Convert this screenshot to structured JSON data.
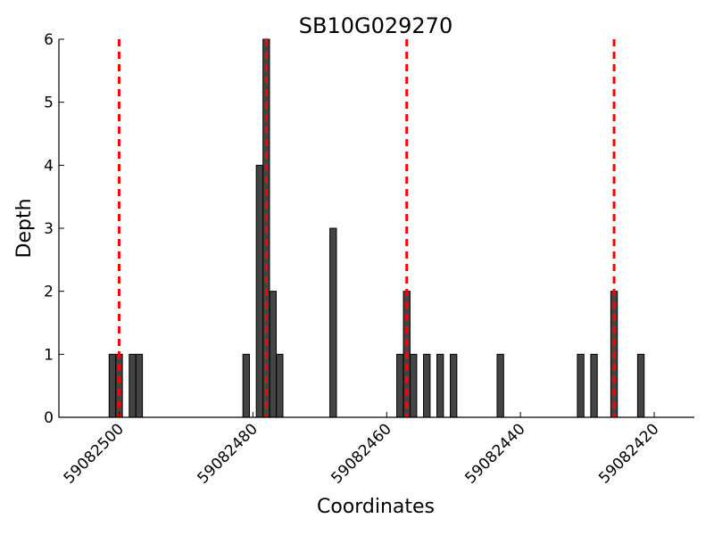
{
  "chart_data": {
    "type": "bar",
    "title": "SB10G029270",
    "xlabel": "Coordinates",
    "ylabel": "Depth",
    "x_reversed": true,
    "xlim": [
      59082509,
      59082414
    ],
    "ylim": [
      0,
      6
    ],
    "xticks": [
      59082500,
      59082480,
      59082460,
      59082440,
      59082420
    ],
    "yticks": [
      0,
      1,
      2,
      3,
      4,
      5,
      6
    ],
    "grid": false,
    "bar_color": "#444444",
    "reference_line_color": "#ff0000",
    "reference_lines": [
      59082500,
      59082478,
      59082457,
      59082426
    ],
    "x": [
      59082501,
      59082500,
      59082498,
      59082497,
      59082481,
      59082479,
      59082478,
      59082477,
      59082476,
      59082468,
      59082458,
      59082457,
      59082456,
      59082454,
      59082452,
      59082450,
      59082443,
      59082431,
      59082429,
      59082426,
      59082422
    ],
    "values": [
      1,
      1,
      1,
      1,
      1,
      4,
      6,
      2,
      1,
      3,
      1,
      2,
      1,
      1,
      1,
      1,
      1,
      1,
      1,
      2,
      1
    ]
  }
}
